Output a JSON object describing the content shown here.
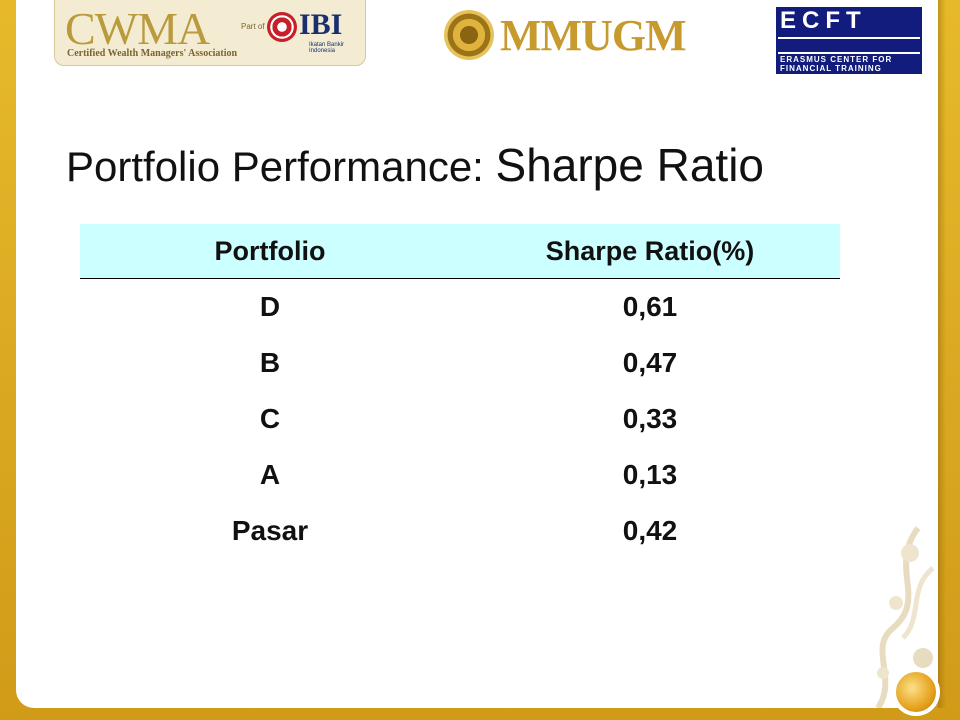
{
  "logos": {
    "cwma": {
      "word": "CWMA",
      "subtitle": "Certified Wealth Managers' Association",
      "part_of": "Part of"
    },
    "ibi": {
      "word": "IBI",
      "subtitle": "Ikatan Bankir Indonesia"
    },
    "ugm": {
      "word": "MMUGM"
    },
    "ecft": {
      "word": "ECFT",
      "line1": "ERASMUS CENTER FOR",
      "line2": "FINANCIAL TRAINING"
    }
  },
  "slide": {
    "title_part1": "Portfolio Performance: ",
    "title_part2": "Sharpe Ratio"
  },
  "table": {
    "headers": [
      "Portfolio",
      "Sharpe Ratio(%)"
    ],
    "rows": [
      [
        "D",
        "0,61"
      ],
      [
        "B",
        "0,47"
      ],
      [
        "C",
        "0,33"
      ],
      [
        "A",
        "0,13"
      ],
      [
        "Pasar",
        "0,42"
      ]
    ]
  },
  "colors": {
    "frame": "#d9a521",
    "header_fill": "#ccffff",
    "ecft_blue": "#121c7c"
  }
}
